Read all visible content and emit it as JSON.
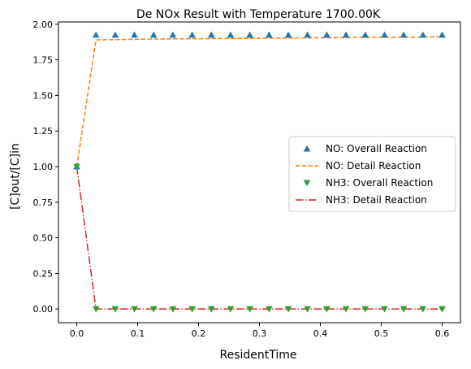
{
  "chart_data": {
    "type": "line",
    "title": "De NOx Result with Temperature 1700.00K",
    "xlabel": "ResidentTime",
    "ylabel": "[C]out/[C]in",
    "xlim": [
      -0.03,
      0.63
    ],
    "ylim": [
      -0.096,
      2.016
    ],
    "xticks": [
      0.0,
      0.1,
      0.2,
      0.3,
      0.4,
      0.5,
      0.6
    ],
    "xtick_labels": [
      "0.0",
      "0.1",
      "0.2",
      "0.3",
      "0.4",
      "0.5",
      "0.6"
    ],
    "yticks": [
      0.0,
      0.25,
      0.5,
      0.75,
      1.0,
      1.25,
      1.5,
      1.75,
      2.0
    ],
    "ytick_labels": [
      "0.00",
      "0.25",
      "0.50",
      "0.75",
      "1.00",
      "1.25",
      "1.50",
      "1.75",
      "2.00"
    ],
    "grid": false,
    "legend_position": "center-right",
    "x": [
      0.0,
      0.0316,
      0.0632,
      0.0947,
      0.1263,
      0.1579,
      0.1895,
      0.2211,
      0.2526,
      0.2842,
      0.3158,
      0.3474,
      0.3789,
      0.4105,
      0.4421,
      0.4737,
      0.5053,
      0.5368,
      0.5684,
      0.6
    ],
    "series": [
      {
        "name": "NO: Overall Reaction",
        "style": "marker-triangle-up",
        "color": "#1f77b4",
        "values": [
          1.0,
          1.925,
          1.925,
          1.925,
          1.925,
          1.925,
          1.925,
          1.925,
          1.925,
          1.925,
          1.925,
          1.925,
          1.925,
          1.925,
          1.925,
          1.925,
          1.925,
          1.925,
          1.925,
          1.925
        ]
      },
      {
        "name": "NO: Detail Reaction",
        "style": "dashed",
        "color": "#ff7f0e",
        "values": [
          1.0,
          1.89,
          1.892,
          1.894,
          1.896,
          1.897,
          1.898,
          1.899,
          1.9,
          1.901,
          1.902,
          1.903,
          1.904,
          1.905,
          1.906,
          1.907,
          1.908,
          1.909,
          1.91,
          1.912
        ]
      },
      {
        "name": "NH3: Overall Reaction",
        "style": "marker-triangle-down",
        "color": "#2ca02c",
        "values": [
          1.0,
          0.0,
          0.0,
          0.0,
          0.0,
          0.0,
          0.0,
          0.0,
          0.0,
          0.0,
          0.0,
          0.0,
          0.0,
          0.0,
          0.0,
          0.0,
          0.0,
          0.0,
          0.0,
          0.0
        ]
      },
      {
        "name": "NH3: Detail Reaction",
        "style": "dashdot",
        "color": "#d62728",
        "values": [
          1.0,
          0.0,
          0.0,
          0.0,
          0.0,
          0.0,
          0.0,
          0.0,
          0.0,
          0.0,
          0.0,
          0.0,
          0.0,
          0.0,
          0.0,
          0.0,
          0.0,
          0.0,
          0.0,
          0.0
        ]
      }
    ]
  }
}
